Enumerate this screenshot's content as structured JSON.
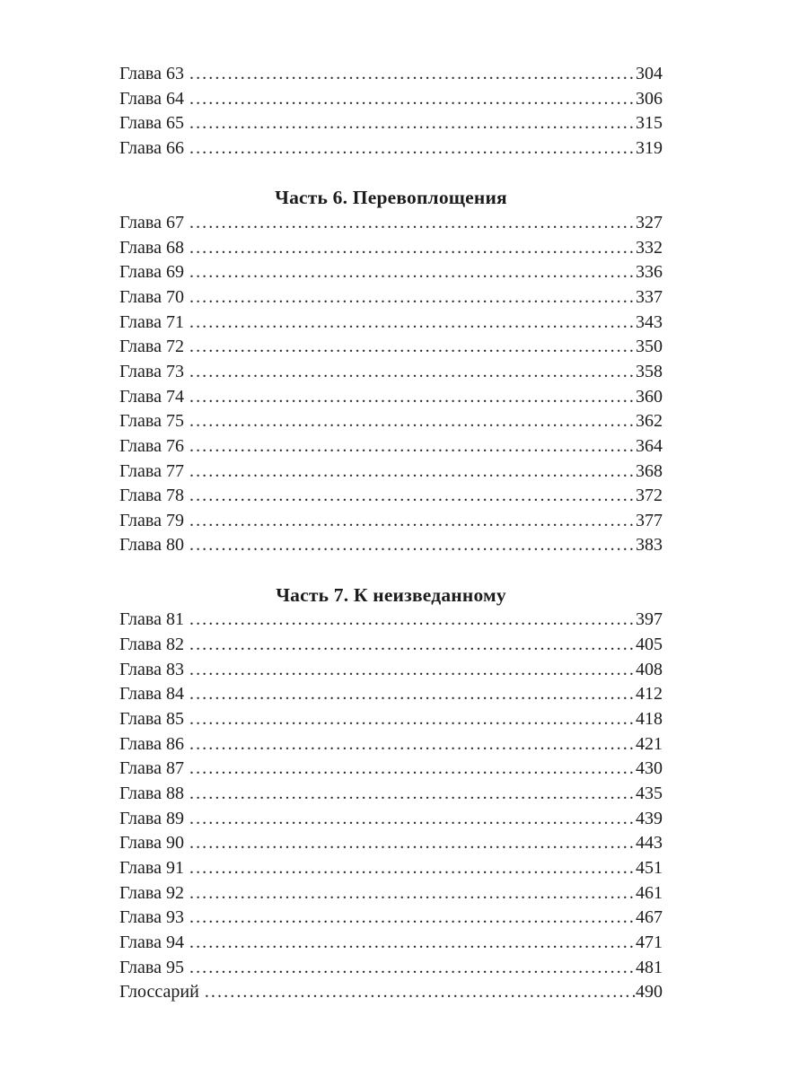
{
  "page": {
    "background": "#ffffff",
    "text_color": "#1c1c1c"
  },
  "toc": {
    "sections": [
      {
        "heading": "",
        "entries": [
          {
            "label": "Глава 63",
            "page": "304"
          },
          {
            "label": "Глава 64",
            "page": "306"
          },
          {
            "label": "Глава 65",
            "page": "315"
          },
          {
            "label": "Глава 66",
            "page": "319"
          }
        ]
      },
      {
        "heading": "Часть 6. Перевоплощения",
        "entries": [
          {
            "label": "Глава 67",
            "page": "327"
          },
          {
            "label": "Глава 68",
            "page": "332"
          },
          {
            "label": "Глава 69",
            "page": "336"
          },
          {
            "label": "Глава 70",
            "page": "337"
          },
          {
            "label": "Глава 71",
            "page": "343"
          },
          {
            "label": "Глава 72",
            "page": "350"
          },
          {
            "label": "Глава 73",
            "page": "358"
          },
          {
            "label": "Глава 74",
            "page": "360"
          },
          {
            "label": "Глава 75",
            "page": "362"
          },
          {
            "label": "Глава 76",
            "page": "364"
          },
          {
            "label": "Глава 77",
            "page": "368"
          },
          {
            "label": "Глава 78",
            "page": "372"
          },
          {
            "label": "Глава 79",
            "page": "377"
          },
          {
            "label": "Глава 80",
            "page": "383"
          }
        ]
      },
      {
        "heading": "Часть 7. К неизведанному",
        "entries": [
          {
            "label": "Глава 81",
            "page": "397"
          },
          {
            "label": "Глава 82",
            "page": "405"
          },
          {
            "label": "Глава 83",
            "page": "408"
          },
          {
            "label": "Глава 84",
            "page": "412"
          },
          {
            "label": "Глава 85",
            "page": "418"
          },
          {
            "label": "Глава 86",
            "page": "421"
          },
          {
            "label": "Глава 87",
            "page": "430"
          },
          {
            "label": "Глава 88",
            "page": "435"
          },
          {
            "label": "Глава 89",
            "page": "439"
          },
          {
            "label": "Глава 90",
            "page": "443"
          },
          {
            "label": "Глава 91",
            "page": "451"
          },
          {
            "label": "Глава 92",
            "page": "461"
          },
          {
            "label": "Глава 93",
            "page": "467"
          },
          {
            "label": "Глава 94",
            "page": "471"
          },
          {
            "label": "Глава 95",
            "page": "481"
          },
          {
            "label": "Глоссарий",
            "page": "490"
          }
        ]
      }
    ]
  }
}
